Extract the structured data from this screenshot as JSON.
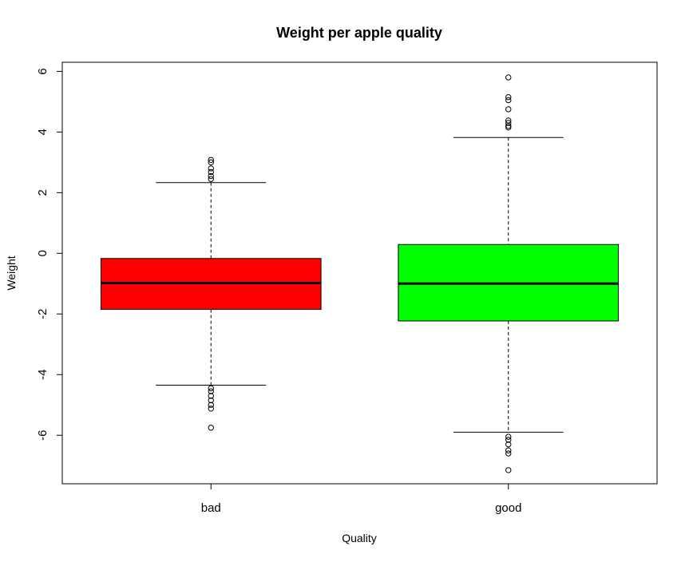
{
  "chart_data": {
    "type": "boxplot",
    "title": "Weight per apple quality",
    "xlabel": "Quality",
    "ylabel": "Weight",
    "ylim": [
      -7.6,
      6.3
    ],
    "yticks": [
      6,
      4,
      2,
      0,
      -2,
      -4,
      -6
    ],
    "ytick_labels": [
      "6",
      "4",
      "2",
      "0",
      "-2",
      "-4",
      "-6"
    ],
    "categories": [
      "bad",
      "good"
    ],
    "boxes": [
      {
        "name": "bad",
        "color": "#ff0000",
        "whisker_low": -4.35,
        "q1": -1.85,
        "median": -0.98,
        "q3": -0.17,
        "whisker_high": 2.33,
        "outliers": [
          2.45,
          2.55,
          2.68,
          2.8,
          3.0,
          3.08,
          -4.45,
          -4.55,
          -4.7,
          -4.85,
          -5.0,
          -5.12,
          -5.75
        ]
      },
      {
        "name": "good",
        "color": "#00ff00",
        "whisker_low": -5.9,
        "q1": -2.23,
        "median": -1.0,
        "q3": 0.29,
        "whisker_high": 3.82,
        "outliers": [
          4.15,
          4.2,
          4.3,
          4.38,
          4.75,
          5.05,
          5.15,
          5.8,
          -6.05,
          -6.15,
          -6.3,
          -6.5,
          -6.6,
          -7.15
        ]
      }
    ],
    "grid": false,
    "legend": "none"
  }
}
